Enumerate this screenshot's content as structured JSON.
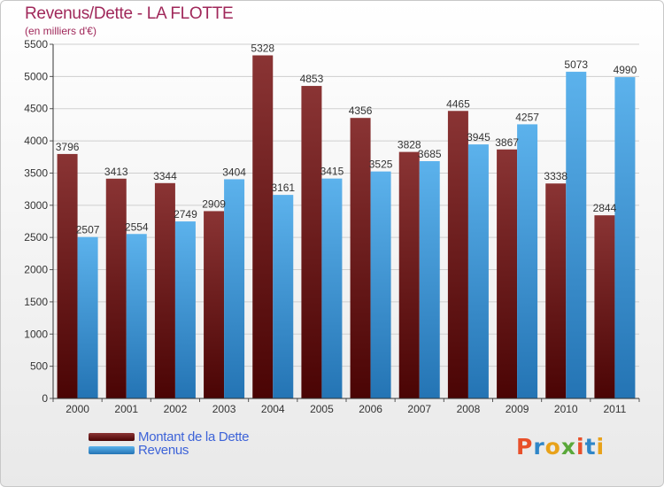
{
  "title": "Revenus/Dette - LA FLOTTE",
  "subtitle": "(en milliers d'€)",
  "colors": {
    "dette_top": "#8a3434",
    "dette_bottom": "#4a0404",
    "revenus_top": "#5cb2ec",
    "revenus_bottom": "#2474b4",
    "grid": "#cfcfcf",
    "text": "#333333"
  },
  "legend": {
    "dette_label": "Montant de la Dette",
    "revenus_label": "Revenus"
  },
  "logo": {
    "text": "Proxiti"
  },
  "chart_data": {
    "type": "bar",
    "title": "Revenus/Dette - LA FLOTTE",
    "subtitle": "(en milliers d'€)",
    "categories": [
      "2000",
      "2001",
      "2002",
      "2003",
      "2004",
      "2005",
      "2006",
      "2007",
      "2008",
      "2009",
      "2010",
      "2011"
    ],
    "series": [
      {
        "name": "Montant de la Dette",
        "values": [
          3796,
          3413,
          3344,
          2909,
          5328,
          4853,
          4356,
          3828,
          4465,
          3867,
          3338,
          2844
        ]
      },
      {
        "name": "Revenus",
        "values": [
          2507,
          2554,
          2749,
          3404,
          3161,
          3415,
          3525,
          3685,
          3945,
          4257,
          5073,
          4990
        ]
      }
    ],
    "ylim": [
      0,
      5500
    ],
    "yticks": [
      0,
      500,
      1000,
      1500,
      2000,
      2500,
      3000,
      3500,
      4000,
      4500,
      5000,
      5500
    ],
    "grid": true,
    "legend_position": "bottom-left"
  }
}
